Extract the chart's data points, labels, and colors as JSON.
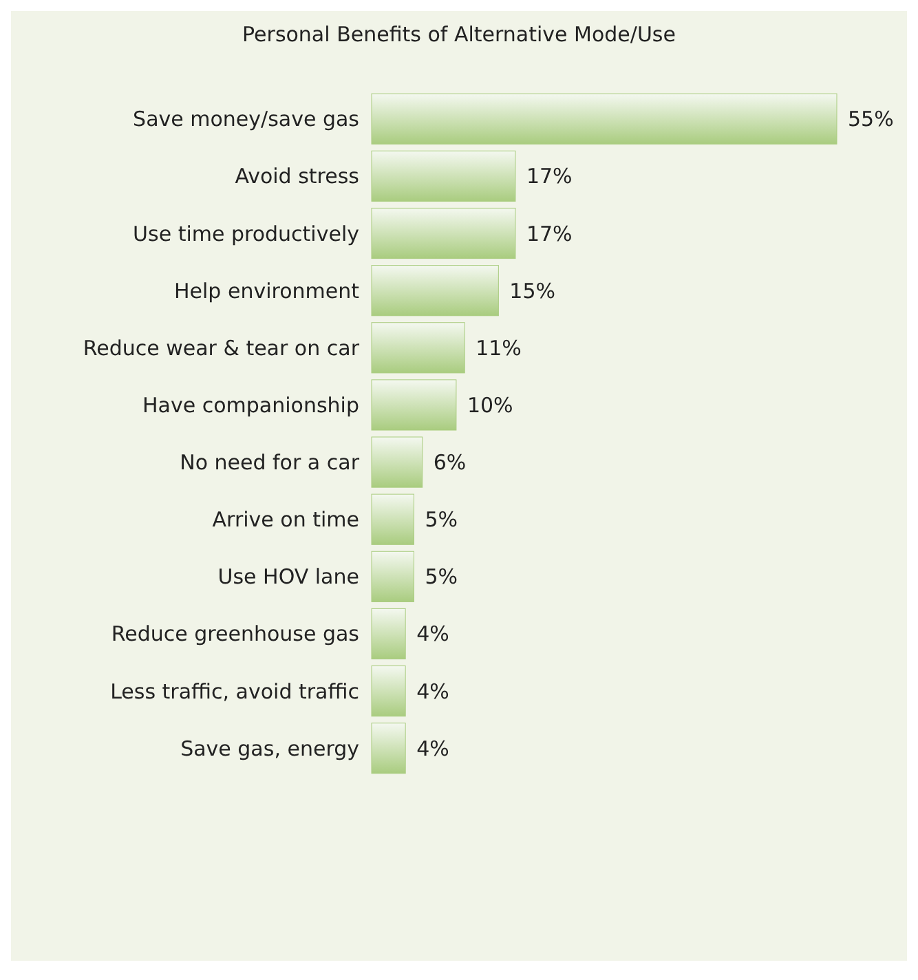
{
  "chart_data": {
    "type": "bar",
    "orientation": "horizontal",
    "title": "Personal Benefits of Alternative Mode/Use",
    "categories": [
      "Save money/save gas",
      "Avoid stress",
      "Use time productively",
      "Help environment",
      "Reduce wear & tear on car",
      "Have companionship",
      "No need for a car",
      "Arrive on time",
      "Use HOV lane",
      "Reduce greenhouse gas",
      "Less traffic, avoid traffic",
      "Save gas, energy"
    ],
    "values": [
      55,
      17,
      17,
      15,
      11,
      10,
      6,
      5,
      5,
      4,
      4,
      4
    ],
    "value_labels": [
      "55%",
      "17%",
      "17%",
      "15%",
      "11%",
      "10%",
      "6%",
      "5%",
      "5%",
      "4%",
      "4%",
      "4%"
    ],
    "color": "#a9cc7f"
  }
}
